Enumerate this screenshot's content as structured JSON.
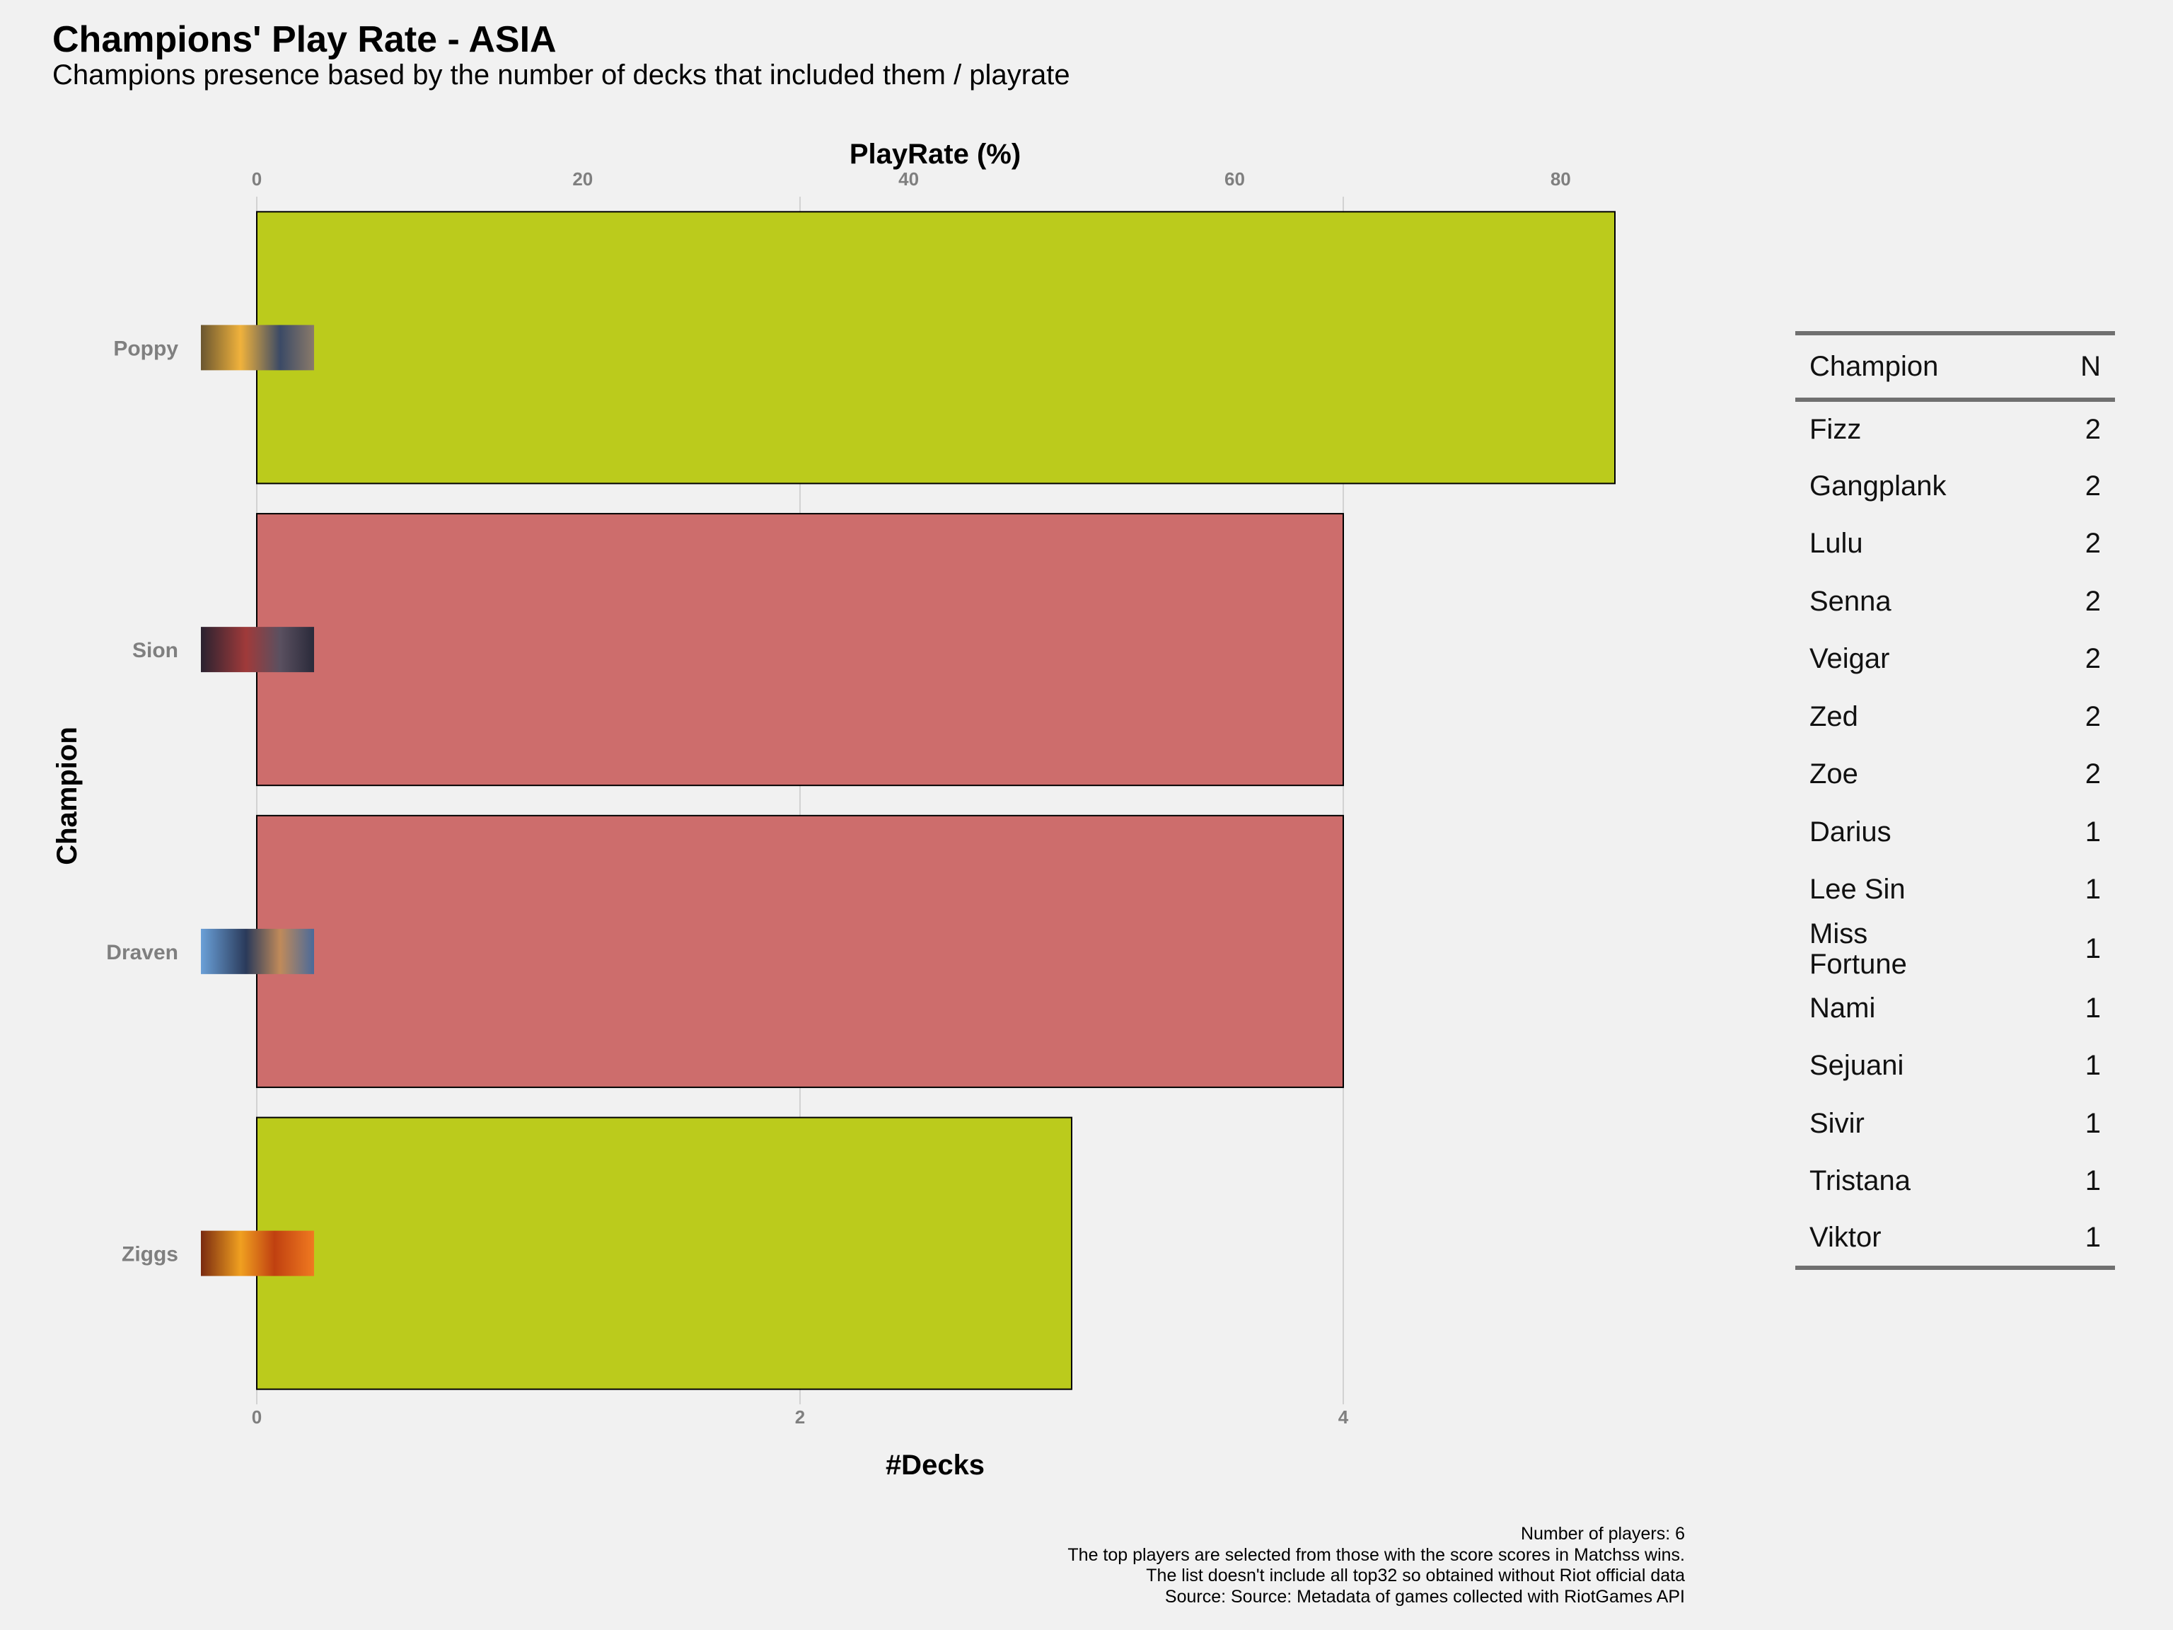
{
  "chart": {
    "title": "Champions' Play Rate - ASIA",
    "subtitle": "Champions presence based by the number of decks that included them / playrate",
    "caption": [
      "Number of players: 6",
      "The top players are selected from those with the score scores in Matchss wins.",
      "The list doesn't include all top32 so obtained without Riot official data",
      "Source: Source: Metadata of games collected with RiotGames API"
    ]
  },
  "chart_data": {
    "type": "bar",
    "orientation": "horizontal",
    "title": "Champions' Play Rate - ASIA",
    "subtitle": "Champions presence based by the number of decks that included them / playrate",
    "xlabel": "#Decks",
    "x2label": "PlayRate (%)",
    "ylabel": "Champion",
    "categories": [
      "Poppy",
      "Sion",
      "Draven",
      "Ziggs"
    ],
    "values": [
      5,
      4,
      4,
      3
    ],
    "bar_colors": [
      "#bbcb1c",
      "#cd6d6c",
      "#cd6d6c",
      "#bbcb1c"
    ],
    "xlim": [
      0,
      5
    ],
    "x_ticks": [
      0,
      2,
      4
    ],
    "x2lim": [
      0,
      83.33
    ],
    "x2_ticks": [
      0,
      20,
      40,
      60,
      80
    ],
    "grid": "vertical major lines",
    "legend": "none"
  },
  "table": {
    "headers": {
      "champion": "Champion",
      "n": "N"
    },
    "rows": [
      {
        "champion": "Fizz",
        "n": "2"
      },
      {
        "champion": "Gangplank",
        "n": "2"
      },
      {
        "champion": "Lulu",
        "n": "2"
      },
      {
        "champion": "Senna",
        "n": "2"
      },
      {
        "champion": "Veigar",
        "n": "2"
      },
      {
        "champion": "Zed",
        "n": "2"
      },
      {
        "champion": "Zoe",
        "n": "2"
      },
      {
        "champion": "Darius",
        "n": "1"
      },
      {
        "champion": "Lee Sin",
        "n": "1"
      },
      {
        "champion": "Miss Fortune",
        "n": "1"
      },
      {
        "champion": "Nami",
        "n": "1"
      },
      {
        "champion": "Sejuani",
        "n": "1"
      },
      {
        "champion": "Sivir",
        "n": "1"
      },
      {
        "champion": "Tristana",
        "n": "1"
      },
      {
        "champion": "Viktor",
        "n": "1"
      }
    ]
  }
}
